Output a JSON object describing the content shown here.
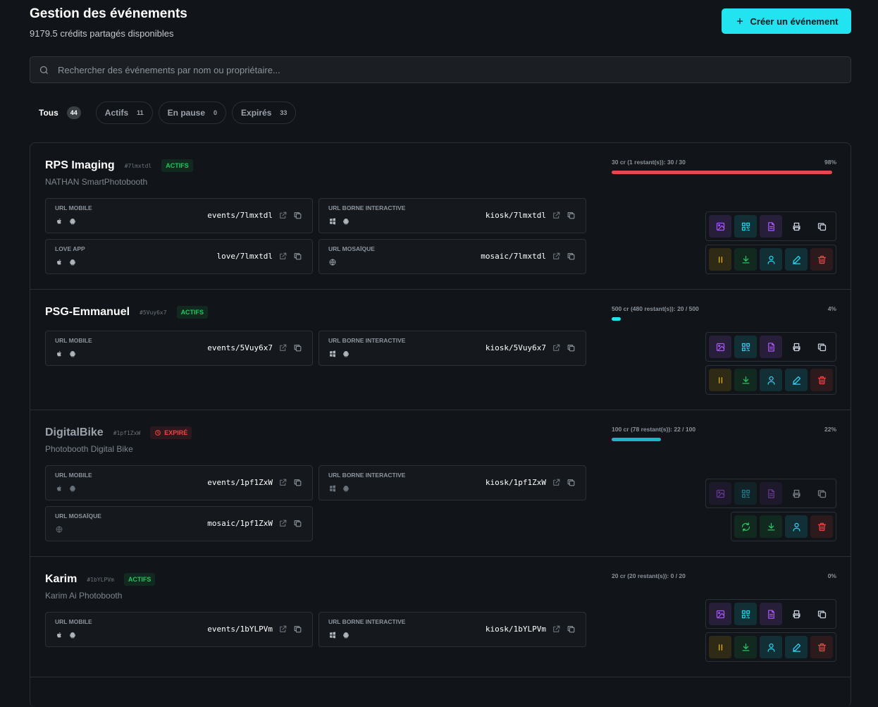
{
  "header": {
    "title": "Gestion des événements",
    "subtitle": "9179.5 crédits partagés disponibles",
    "create_button": "Créer un événement"
  },
  "search": {
    "placeholder": "Rechercher des événements par nom ou propriétaire..."
  },
  "tabs": [
    {
      "label": "Tous",
      "count": 44
    },
    {
      "label": "Actifs",
      "count": 11
    },
    {
      "label": "En pause",
      "count": 0
    },
    {
      "label": "Expirés",
      "count": 33
    }
  ],
  "events": [
    {
      "name": "RPS Imaging",
      "id": "#7lmxtdl",
      "status": "ACTIFS",
      "owner": "NATHAN SmartPhotobooth",
      "credits": "30 cr (1 restant(s)): 30 / 30",
      "percent": 98,
      "percent_label": "98%",
      "urls": [
        {
          "label": "URL MOBILE",
          "path": "events/7lmxtdl"
        },
        {
          "label": "URL BORNE INTERACTIVE",
          "path": "kiosk/7lmxtdl"
        },
        {
          "label": "LOVE APP",
          "path": "love/7lmxtdl"
        },
        {
          "label": "URL MOSAÏQUE",
          "path": "mosaic/7lmxtdl"
        }
      ]
    },
    {
      "name": "PSG-Emmanuel",
      "id": "#5Vuy6x7",
      "status": "ACTIFS",
      "credits": "500 cr (480 restant(s)): 20 / 500",
      "percent": 4,
      "percent_label": "4%",
      "urls": [
        {
          "label": "URL MOBILE",
          "path": "events/5Vuy6x7"
        },
        {
          "label": "URL BORNE INTERACTIVE",
          "path": "kiosk/5Vuy6x7"
        }
      ]
    },
    {
      "name": "DigitalBike",
      "id": "#1pf1ZxW",
      "status": "EXPIRÉ",
      "owner": "Photobooth Digital Bike",
      "credits": "100 cr (78 restant(s)): 22 / 100",
      "percent": 22,
      "percent_label": "22%",
      "urls": [
        {
          "label": "URL MOBILE",
          "path": "events/1pf1ZxW"
        },
        {
          "label": "URL BORNE INTERACTIVE",
          "path": "kiosk/1pf1ZxW"
        },
        {
          "label": "URL MOSAÏQUE",
          "path": "mosaic/1pf1ZxW"
        }
      ]
    },
    {
      "name": "Karim",
      "id": "#1bYLPVm",
      "status": "ACTIFS",
      "owner": "Karim Ai Photobooth",
      "credits": "20 cr (20 restant(s)): 0 / 20",
      "percent": 0,
      "percent_label": "0%",
      "urls": [
        {
          "label": "URL MOBILE",
          "path": "events/1bYLPVm"
        },
        {
          "label": "URL BORNE INTERACTIVE",
          "path": "kiosk/1bYLPVm"
        }
      ]
    }
  ]
}
